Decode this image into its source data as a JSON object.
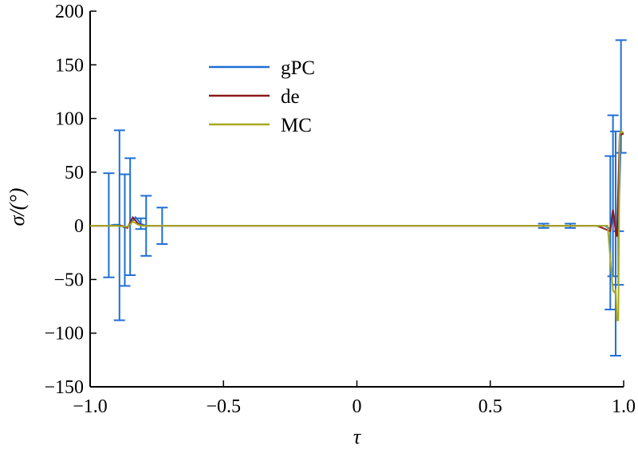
{
  "chart_data": {
    "type": "line",
    "title": "",
    "xlabel": "τ",
    "ylabel": "σ/(°)",
    "xlim": [
      -1.0,
      1.0
    ],
    "ylim": [
      -150,
      200
    ],
    "xticks": [
      -1.0,
      -0.5,
      0,
      0.5,
      1.0
    ],
    "xtick_labels": [
      "−1.0",
      "−0.5",
      "0",
      "0.5",
      "1.0"
    ],
    "yticks": [
      -150,
      -100,
      -50,
      0,
      50,
      100,
      150,
      200
    ],
    "ytick_labels": [
      "−150",
      "−100",
      "−50",
      "0",
      "50",
      "100",
      "150",
      "200"
    ],
    "grid": false,
    "legend_position": "upper-left",
    "series": [
      {
        "name": "gPC",
        "color": "#1f6fd6",
        "style": "errorbar",
        "x": [
          -1.0,
          -0.97,
          -0.95,
          -0.93,
          -0.91,
          -0.89,
          -0.87,
          -0.85,
          -0.83,
          -0.81,
          -0.79,
          -0.77,
          -0.75,
          -0.73,
          -0.71,
          -0.69,
          -0.67,
          -0.5,
          0,
          0.5,
          0.7,
          0.72,
          0.74,
          0.76,
          0.78,
          0.8,
          0.9,
          0.93,
          0.95,
          0.96,
          0.97,
          0.98,
          0.99,
          1.0
        ],
        "y": [
          0,
          0,
          0,
          0,
          1,
          1,
          -2,
          1,
          8,
          2,
          0,
          0,
          0,
          0,
          0,
          0,
          0,
          0,
          0,
          0,
          0,
          0,
          0,
          0,
          0,
          0,
          0,
          0,
          -3,
          15,
          0,
          -5,
          85,
          86
        ],
        "err_low": [
          0,
          0,
          0,
          -48,
          0,
          -89,
          -54,
          -47,
          0,
          -5,
          -28,
          0,
          0,
          -17,
          0,
          0,
          0,
          0,
          0,
          0,
          -2,
          0,
          0,
          0,
          0,
          -2,
          0,
          0,
          -75,
          -62,
          -121,
          -50,
          -17,
          0
        ],
        "err_high": [
          0,
          0,
          0,
          49,
          0,
          88,
          50,
          62,
          0,
          5,
          28,
          0,
          0,
          17,
          0,
          0,
          0,
          0,
          0,
          0,
          2,
          0,
          0,
          0,
          0,
          2,
          0,
          0,
          68,
          88,
          88,
          0,
          88,
          0
        ]
      },
      {
        "name": "de",
        "color": "#8b1a1a",
        "style": "line",
        "x": [
          -1.0,
          -0.9,
          -0.88,
          -0.86,
          -0.84,
          -0.82,
          -0.8,
          -0.7,
          0,
          0.9,
          0.95,
          0.96,
          0.97,
          0.975,
          0.985,
          0.99,
          1.0
        ],
        "y": [
          0,
          0,
          0,
          -2,
          8,
          2,
          0,
          0,
          0,
          0,
          -5,
          15,
          -5,
          -10,
          85,
          85,
          86
        ]
      },
      {
        "name": "MC",
        "color": "#a8a820",
        "style": "line",
        "x": [
          -1.0,
          -0.9,
          -0.86,
          -0.84,
          -0.82,
          -0.8,
          -0.7,
          0,
          0.9,
          0.94,
          0.96,
          0.965,
          0.97,
          0.975,
          0.98,
          0.985,
          0.99,
          1.0
        ],
        "y": [
          0,
          0,
          -1,
          4,
          1,
          0,
          0,
          0,
          0,
          0,
          -60,
          -62,
          -60,
          -88,
          -88,
          85,
          88,
          87
        ]
      }
    ]
  }
}
